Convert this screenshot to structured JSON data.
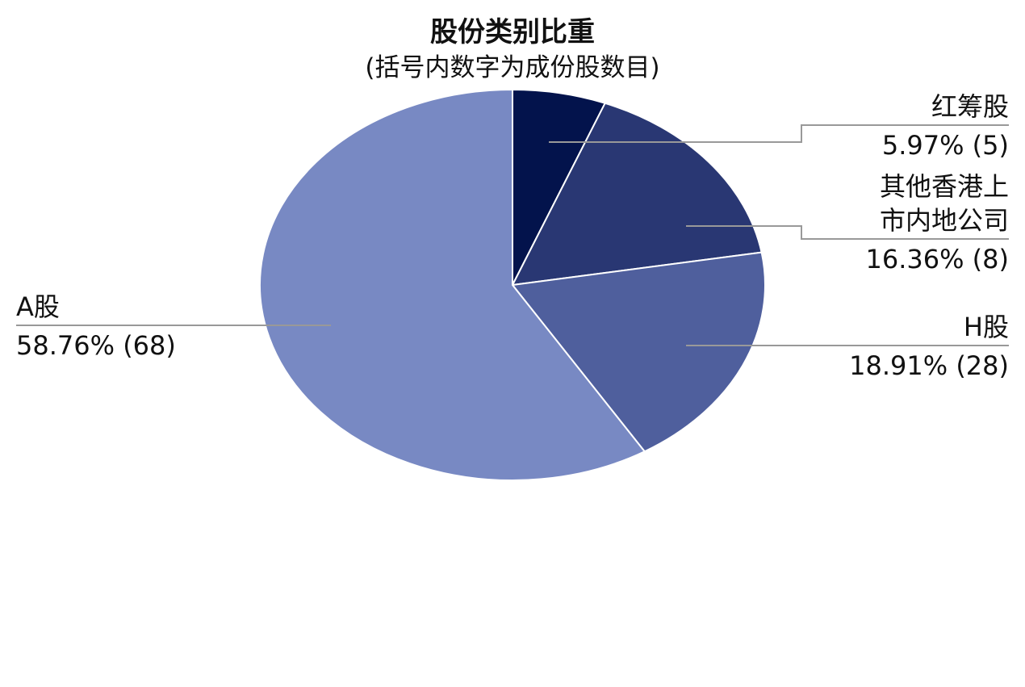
{
  "chart_data": {
    "type": "pie",
    "title": "股份类别比重",
    "subtitle": "(括号内数字为成份股数目)",
    "categories": [
      "红筹股",
      "其他香港上市内地公司",
      "H股",
      "A股"
    ],
    "values": [
      5.97,
      16.36,
      18.91,
      58.76
    ],
    "value_labels": [
      "5.97% (5)",
      "16.36% (8)",
      "18.91% (28)",
      "58.76% (68)"
    ],
    "colors": [
      "#03134c",
      "#293773",
      "#4f5f9d",
      "#7889c3"
    ]
  }
}
